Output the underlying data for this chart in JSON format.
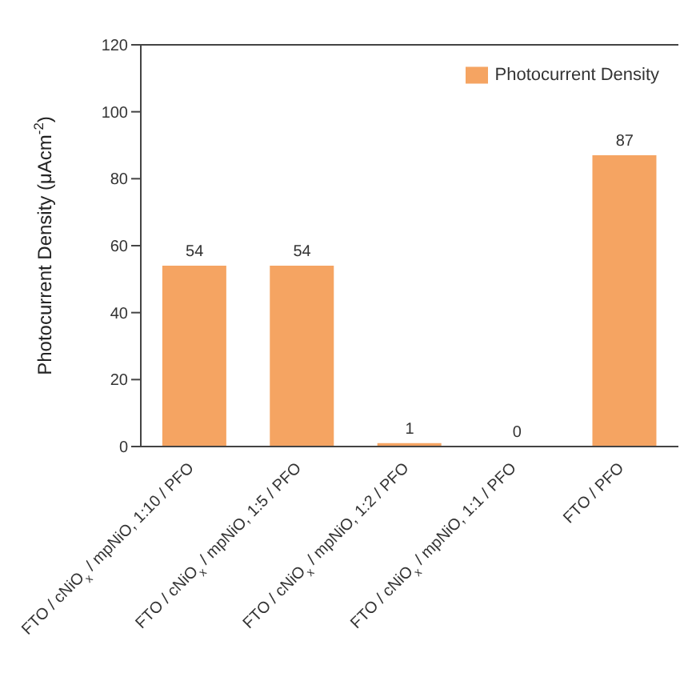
{
  "chart_data": {
    "type": "bar",
    "ylabel": "Photocurrent Density (μAcm$^{-2}$)",
    "categories": [
      "FTO / cNiO$_{x}$ / mpNiO, 1:10 / PFO",
      "FTO / cNiO$_{x}$ / mpNiO, 1:5 / PFO",
      "FTO / cNiO$_{x}$ / mpNiO, 1:2 / PFO",
      "FTO / cNiO$_{x}$ / mpNiO, 1:1 / PFO",
      "FTO / PFO"
    ],
    "series": [
      {
        "name": "Photocurrent Density",
        "color": "#f5a462",
        "values": [
          54,
          54,
          1,
          0,
          87
        ]
      }
    ],
    "ylim": [
      0,
      120
    ],
    "yticks": [
      0,
      20,
      40,
      60,
      80,
      100,
      120
    ],
    "data_labels": true,
    "legend": "top right",
    "grid": false
  }
}
